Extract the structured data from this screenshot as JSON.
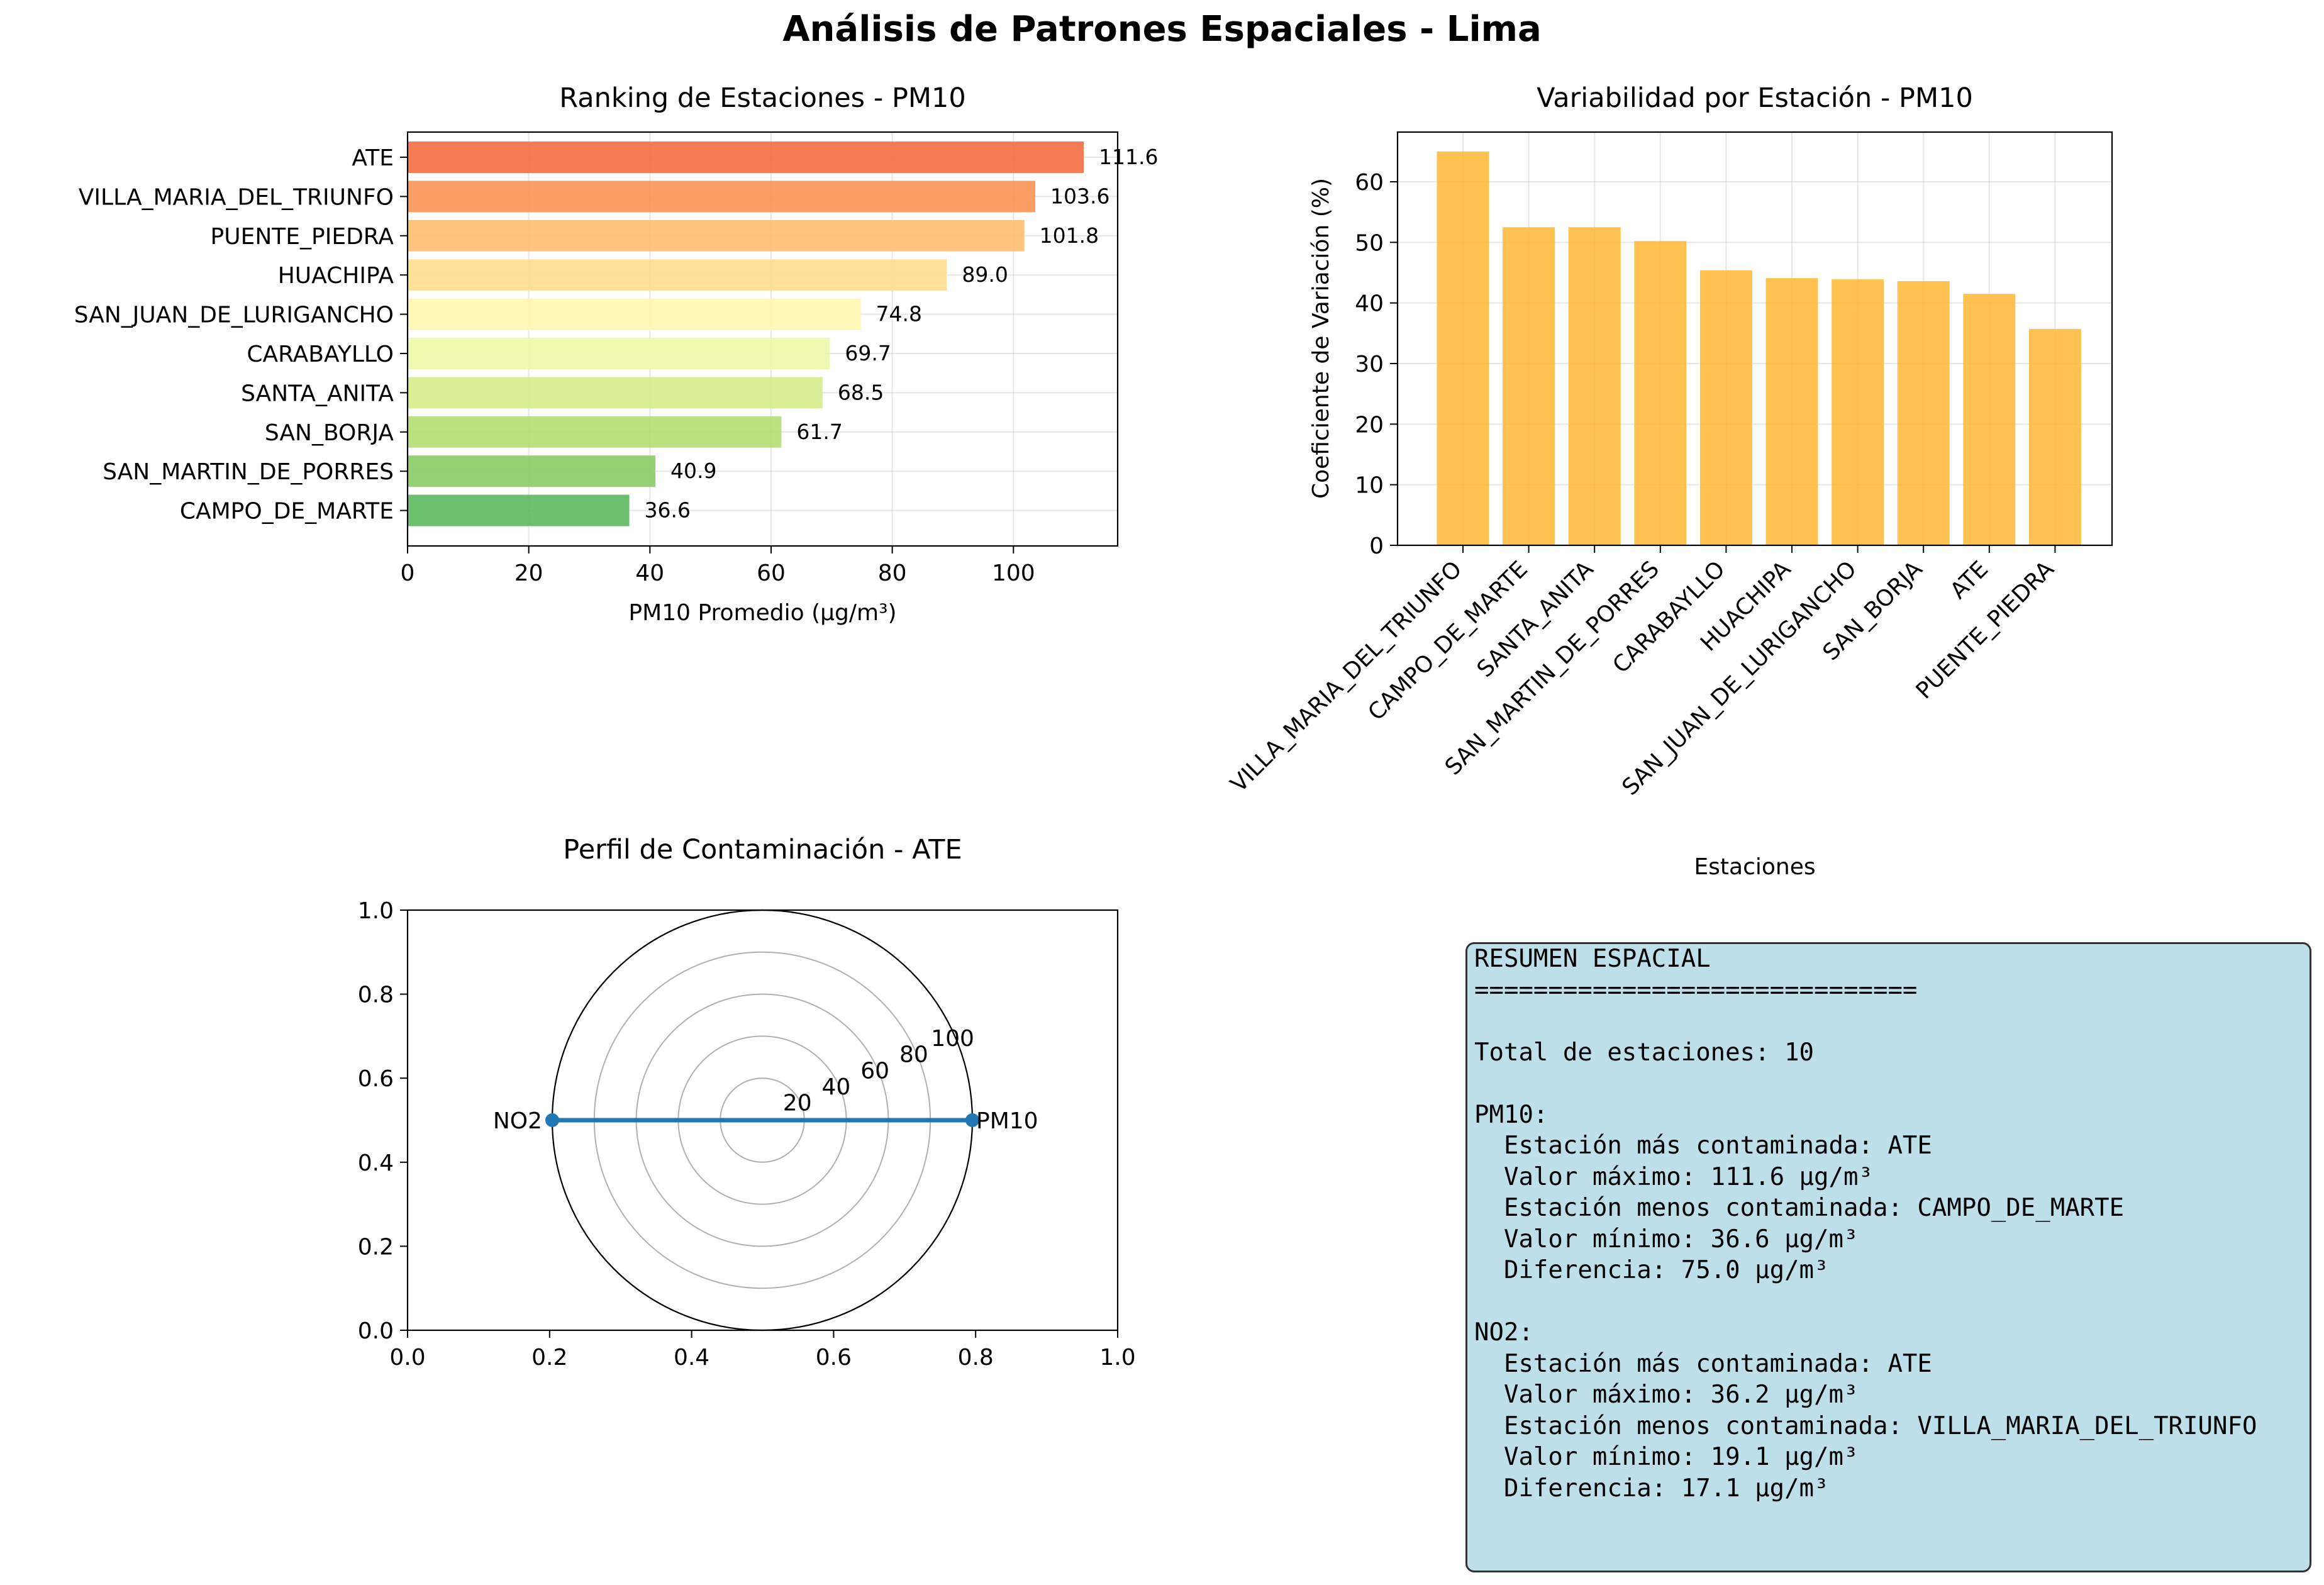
{
  "figure": {
    "title": "Análisis de Patrones Espaciales - Lima"
  },
  "chart_data": [
    {
      "type": "bar",
      "orientation": "horizontal",
      "title": "Ranking de Estaciones - PM10",
      "xlabel": "PM10 Promedio (µg/m³)",
      "ylabel": "",
      "xlim": [
        0,
        117.2
      ],
      "xticks": [
        0,
        20,
        40,
        60,
        80,
        100
      ],
      "grid": true,
      "categories": [
        "ATE",
        "VILLA_MARIA_DEL_TRIUNFO",
        "PUENTE_PIEDRA",
        "HUACHIPA",
        "SAN_JUAN_DE_LURIGANCHO",
        "CARABAYLLO",
        "SANTA_ANITA",
        "SAN_BORJA",
        "SAN_MARTIN_DE_PORRES",
        "CAMPO_DE_MARTE"
      ],
      "values": [
        111.6,
        103.6,
        101.8,
        89.0,
        74.8,
        69.7,
        68.5,
        61.7,
        40.9,
        36.6
      ],
      "value_labels": [
        "111.6",
        "103.6",
        "101.8",
        "89.0",
        "74.8",
        "69.7",
        "68.5",
        "61.7",
        "40.9",
        "36.6"
      ],
      "colors": [
        "#f46d43",
        "#f99355",
        "#fdbe6f",
        "#fedd8d",
        "#fff6b0",
        "#eef8aa",
        "#d5ed89",
        "#b3df72",
        "#88cc66",
        "#5cb85c"
      ]
    },
    {
      "type": "bar",
      "title": "Variabilidad por Estación - PM10",
      "xlabel": "Estaciones",
      "ylabel": "Coeficiente de Variación (%)",
      "ylim": [
        0,
        68.2
      ],
      "yticks": [
        0,
        10,
        20,
        30,
        40,
        50,
        60
      ],
      "grid": true,
      "color": "#ffb732",
      "categories": [
        "VILLA_MARIA_DEL_TRIUNFO",
        "CAMPO_DE_MARTE",
        "SANTA_ANITA",
        "SAN_MARTIN_DE_PORRES",
        "CARABAYLLO",
        "HUACHIPA",
        "SAN_JUAN_DE_LURIGANCHO",
        "SAN_BORJA",
        "ATE",
        "PUENTE_PIEDRA"
      ],
      "values": [
        65.0,
        52.5,
        52.5,
        50.2,
        45.4,
        44.1,
        43.9,
        43.6,
        41.5,
        35.7
      ]
    },
    {
      "type": "radar",
      "title": "Perfil de Contaminación - ATE",
      "categories": [
        "PM10",
        "NO2"
      ],
      "values": [
        100,
        100
      ],
      "rlim": [
        0,
        100
      ],
      "rticks": [
        20,
        40,
        60,
        80,
        100
      ],
      "color": "#1f77b4",
      "background_axes": {
        "xlim": [
          0,
          1
        ],
        "ylim": [
          0,
          1
        ],
        "ticks": [
          "0.0",
          "0.2",
          "0.4",
          "0.6",
          "0.8",
          "1.0"
        ]
      }
    }
  ],
  "summary": {
    "lines": [
      "RESUMEN ESPACIAL",
      "==============================",
      "",
      "Total de estaciones: 10",
      "",
      "PM10:",
      "  Estación más contaminada: ATE",
      "  Valor máximo: 111.6 µg/m³",
      "  Estación menos contaminada: CAMPO_DE_MARTE",
      "  Valor mínimo: 36.6 µg/m³",
      "  Diferencia: 75.0 µg/m³",
      "",
      "NO2:",
      "  Estación más contaminada: ATE",
      "  Valor máximo: 36.2 µg/m³",
      "  Estación menos contaminada: VILLA_MARIA_DEL_TRIUNFO",
      "  Valor mínimo: 19.1 µg/m³",
      "  Diferencia: 17.1 µg/m³"
    ]
  }
}
